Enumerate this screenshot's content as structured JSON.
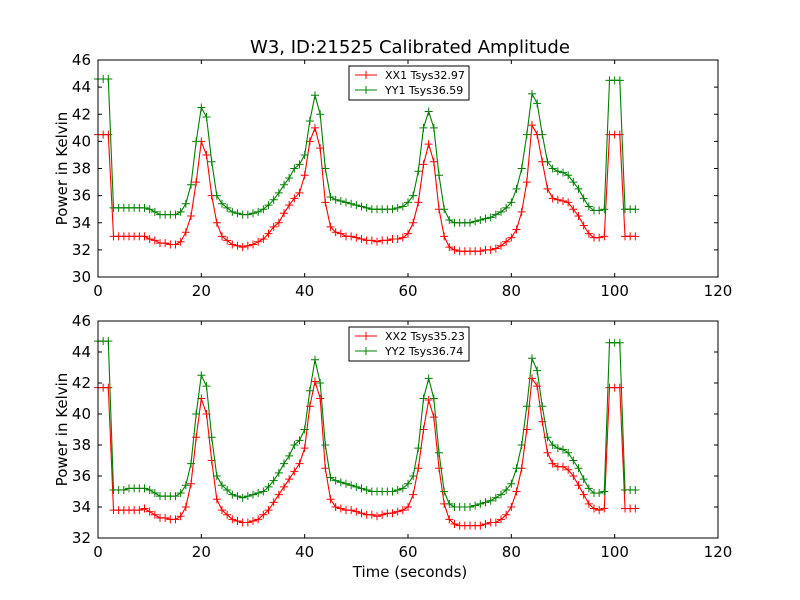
{
  "figure": {
    "title": "W3, ID:21525 Calibrated Amplitude",
    "xlabel": "Time (seconds)"
  },
  "chart_data": [
    {
      "type": "line",
      "title": "W3, ID:21525 Calibrated Amplitude",
      "xlabel": "",
      "ylabel": "Power in Kelvin",
      "xlim": [
        0,
        120
      ],
      "ylim": [
        30,
        46
      ],
      "xticks": [
        "0",
        "20",
        "40",
        "60",
        "80",
        "100",
        "120"
      ],
      "yticks": [
        "30",
        "32",
        "34",
        "36",
        "38",
        "40",
        "42",
        "44",
        "46"
      ],
      "legend_position": "top-center",
      "grid": false,
      "series": [
        {
          "name": "XX1 Tsys32.97",
          "color": "#ff0000",
          "marker": "+",
          "x": [
            0,
            1,
            2,
            3,
            4,
            5,
            6,
            7,
            8,
            9,
            10,
            11,
            12,
            13,
            14,
            15,
            16,
            17,
            18,
            19,
            20,
            21,
            22,
            23,
            24,
            25,
            26,
            27,
            28,
            29,
            30,
            31,
            32,
            33,
            34,
            35,
            36,
            37,
            38,
            39,
            40,
            41,
            42,
            43,
            44,
            45,
            46,
            47,
            48,
            49,
            50,
            51,
            52,
            53,
            54,
            55,
            56,
            57,
            58,
            59,
            60,
            61,
            62,
            63,
            64,
            65,
            66,
            67,
            68,
            69,
            70,
            71,
            72,
            73,
            74,
            75,
            76,
            77,
            78,
            79,
            80,
            81,
            82,
            83,
            84,
            85,
            86,
            87,
            88,
            89,
            90,
            91,
            92,
            93,
            94,
            95,
            96,
            97,
            98,
            99,
            100,
            101,
            102,
            103,
            104
          ],
          "y": [
            40.5,
            40.5,
            40.5,
            33.0,
            33.0,
            33.0,
            33.0,
            33.0,
            33.0,
            33.0,
            32.8,
            32.7,
            32.5,
            32.5,
            32.4,
            32.4,
            32.6,
            33.3,
            34.5,
            37.0,
            40.0,
            39.0,
            36.0,
            34.0,
            33.0,
            32.7,
            32.4,
            32.3,
            32.2,
            32.3,
            32.4,
            32.6,
            32.8,
            33.2,
            33.7,
            34.0,
            34.7,
            35.3,
            35.8,
            36.2,
            37.5,
            40.0,
            41.0,
            39.5,
            35.5,
            33.7,
            33.3,
            33.2,
            33.0,
            33.0,
            32.9,
            32.8,
            32.7,
            32.7,
            32.6,
            32.7,
            32.7,
            32.8,
            32.8,
            32.9,
            33.2,
            34.0,
            35.5,
            38.3,
            39.8,
            38.5,
            35.0,
            33.0,
            32.2,
            32.0,
            31.9,
            31.9,
            31.9,
            31.9,
            31.9,
            32.0,
            32.0,
            32.1,
            32.3,
            32.6,
            32.9,
            33.5,
            34.8,
            37.0,
            41.2,
            40.5,
            38.5,
            36.5,
            35.8,
            35.7,
            35.6,
            35.5,
            35.0,
            34.5,
            33.8,
            33.2,
            32.9,
            32.9,
            33.0,
            40.5,
            40.5,
            40.5,
            33.0,
            33.0,
            33.0
          ]
        },
        {
          "name": "YY1 Tsys36.59",
          "color": "#008000",
          "marker": "+",
          "x": [
            0,
            1,
            2,
            3,
            4,
            5,
            6,
            7,
            8,
            9,
            10,
            11,
            12,
            13,
            14,
            15,
            16,
            17,
            18,
            19,
            20,
            21,
            22,
            23,
            24,
            25,
            26,
            27,
            28,
            29,
            30,
            31,
            32,
            33,
            34,
            35,
            36,
            37,
            38,
            39,
            40,
            41,
            42,
            43,
            44,
            45,
            46,
            47,
            48,
            49,
            50,
            51,
            52,
            53,
            54,
            55,
            56,
            57,
            58,
            59,
            60,
            61,
            62,
            63,
            64,
            65,
            66,
            67,
            68,
            69,
            70,
            71,
            72,
            73,
            74,
            75,
            76,
            77,
            78,
            79,
            80,
            81,
            82,
            83,
            84,
            85,
            86,
            87,
            88,
            89,
            90,
            91,
            92,
            93,
            94,
            95,
            96,
            97,
            98,
            99,
            100,
            101,
            102,
            103,
            104
          ],
          "y": [
            44.6,
            44.6,
            44.6,
            35.1,
            35.1,
            35.1,
            35.1,
            35.1,
            35.1,
            35.1,
            35.0,
            34.8,
            34.6,
            34.6,
            34.6,
            34.6,
            34.8,
            35.4,
            36.8,
            40.0,
            42.5,
            41.8,
            38.5,
            36.0,
            35.4,
            35.1,
            34.8,
            34.7,
            34.6,
            34.6,
            34.7,
            34.8,
            35.0,
            35.3,
            35.7,
            36.2,
            36.8,
            37.3,
            38.0,
            38.3,
            39.0,
            41.5,
            43.4,
            42.0,
            38.0,
            35.9,
            35.7,
            35.6,
            35.5,
            35.4,
            35.3,
            35.2,
            35.1,
            35.0,
            35.0,
            35.0,
            35.0,
            35.0,
            35.1,
            35.2,
            35.5,
            36.0,
            37.8,
            41.0,
            42.2,
            41.0,
            37.5,
            35.0,
            34.2,
            34.0,
            34.0,
            34.0,
            34.0,
            34.1,
            34.2,
            34.3,
            34.4,
            34.6,
            34.8,
            35.1,
            35.5,
            36.5,
            38.0,
            40.5,
            43.5,
            42.8,
            40.5,
            38.5,
            38.0,
            37.8,
            37.7,
            37.5,
            37.0,
            36.5,
            35.8,
            35.2,
            34.9,
            34.9,
            35.0,
            44.5,
            44.5,
            44.5,
            35.0,
            35.0,
            35.0
          ]
        }
      ]
    },
    {
      "type": "line",
      "title": "",
      "xlabel": "Time (seconds)",
      "ylabel": "Power in Kelvin",
      "xlim": [
        0,
        120
      ],
      "ylim": [
        32,
        46
      ],
      "xticks": [
        "0",
        "20",
        "40",
        "60",
        "80",
        "100",
        "120"
      ],
      "yticks": [
        "32",
        "34",
        "36",
        "38",
        "40",
        "42",
        "44",
        "46"
      ],
      "legend_position": "top-center",
      "grid": false,
      "series": [
        {
          "name": "XX2 Tsys35.23",
          "color": "#ff0000",
          "marker": "+",
          "x": [
            0,
            1,
            2,
            3,
            4,
            5,
            6,
            7,
            8,
            9,
            10,
            11,
            12,
            13,
            14,
            15,
            16,
            17,
            18,
            19,
            20,
            21,
            22,
            23,
            24,
            25,
            26,
            27,
            28,
            29,
            30,
            31,
            32,
            33,
            34,
            35,
            36,
            37,
            38,
            39,
            40,
            41,
            42,
            43,
            44,
            45,
            46,
            47,
            48,
            49,
            50,
            51,
            52,
            53,
            54,
            55,
            56,
            57,
            58,
            59,
            60,
            61,
            62,
            63,
            64,
            65,
            66,
            67,
            68,
            69,
            70,
            71,
            72,
            73,
            74,
            75,
            76,
            77,
            78,
            79,
            80,
            81,
            82,
            83,
            84,
            85,
            86,
            87,
            88,
            89,
            90,
            91,
            92,
            93,
            94,
            95,
            96,
            97,
            98,
            99,
            100,
            101,
            102,
            103,
            104
          ],
          "y": [
            41.7,
            41.7,
            41.7,
            33.8,
            33.8,
            33.8,
            33.8,
            33.8,
            33.8,
            33.9,
            33.7,
            33.5,
            33.3,
            33.3,
            33.2,
            33.2,
            33.4,
            34.0,
            35.5,
            38.5,
            41.0,
            40.0,
            37.0,
            34.5,
            33.8,
            33.5,
            33.2,
            33.1,
            33.0,
            33.0,
            33.1,
            33.2,
            33.5,
            33.8,
            34.3,
            34.8,
            35.3,
            35.8,
            36.3,
            36.8,
            37.8,
            40.5,
            42.1,
            41.0,
            36.5,
            34.5,
            34.0,
            33.9,
            33.8,
            33.8,
            33.7,
            33.6,
            33.5,
            33.5,
            33.4,
            33.5,
            33.6,
            33.6,
            33.7,
            33.8,
            34.0,
            34.8,
            36.5,
            39.0,
            40.9,
            39.8,
            36.5,
            34.2,
            33.2,
            32.9,
            32.8,
            32.8,
            32.8,
            32.8,
            32.8,
            32.9,
            33.0,
            33.0,
            33.2,
            33.5,
            34.0,
            35.0,
            36.5,
            39.0,
            42.3,
            41.8,
            39.5,
            37.5,
            36.8,
            36.6,
            36.6,
            36.4,
            36.0,
            35.4,
            34.8,
            34.2,
            33.9,
            33.8,
            33.9,
            41.7,
            41.7,
            41.7,
            33.9,
            33.9,
            33.9
          ]
        },
        {
          "name": "YY2 Tsys36.74",
          "color": "#008000",
          "marker": "+",
          "x": [
            0,
            1,
            2,
            3,
            4,
            5,
            6,
            7,
            8,
            9,
            10,
            11,
            12,
            13,
            14,
            15,
            16,
            17,
            18,
            19,
            20,
            21,
            22,
            23,
            24,
            25,
            26,
            27,
            28,
            29,
            30,
            31,
            32,
            33,
            34,
            35,
            36,
            37,
            38,
            39,
            40,
            41,
            42,
            43,
            44,
            45,
            46,
            47,
            48,
            49,
            50,
            51,
            52,
            53,
            54,
            55,
            56,
            57,
            58,
            59,
            60,
            61,
            62,
            63,
            64,
            65,
            66,
            67,
            68,
            69,
            70,
            71,
            72,
            73,
            74,
            75,
            76,
            77,
            78,
            79,
            80,
            81,
            82,
            83,
            84,
            85,
            86,
            87,
            88,
            89,
            90,
            91,
            92,
            93,
            94,
            95,
            96,
            97,
            98,
            99,
            100,
            101,
            102,
            103,
            104
          ],
          "y": [
            44.7,
            44.7,
            44.7,
            35.1,
            35.1,
            35.1,
            35.2,
            35.2,
            35.2,
            35.2,
            35.1,
            34.9,
            34.7,
            34.7,
            34.7,
            34.7,
            34.9,
            35.4,
            36.8,
            40.0,
            42.5,
            41.8,
            38.5,
            36.0,
            35.4,
            35.1,
            34.8,
            34.7,
            34.6,
            34.7,
            34.8,
            34.9,
            35.0,
            35.3,
            35.7,
            36.2,
            36.8,
            37.3,
            38.0,
            38.3,
            39.0,
            41.5,
            43.5,
            42.0,
            38.0,
            35.9,
            35.7,
            35.6,
            35.5,
            35.4,
            35.3,
            35.2,
            35.1,
            35.0,
            35.0,
            35.0,
            35.0,
            35.0,
            35.1,
            35.2,
            35.5,
            36.0,
            37.8,
            41.0,
            42.3,
            41.0,
            37.5,
            35.0,
            34.2,
            34.0,
            34.0,
            34.0,
            34.0,
            34.1,
            34.2,
            34.3,
            34.4,
            34.6,
            34.8,
            35.1,
            35.5,
            36.5,
            38.0,
            40.5,
            43.6,
            42.8,
            40.5,
            38.5,
            38.0,
            37.8,
            37.7,
            37.5,
            37.0,
            36.5,
            35.8,
            35.2,
            34.9,
            34.9,
            35.0,
            44.6,
            44.6,
            44.6,
            35.1,
            35.1,
            35.1
          ]
        }
      ]
    }
  ]
}
